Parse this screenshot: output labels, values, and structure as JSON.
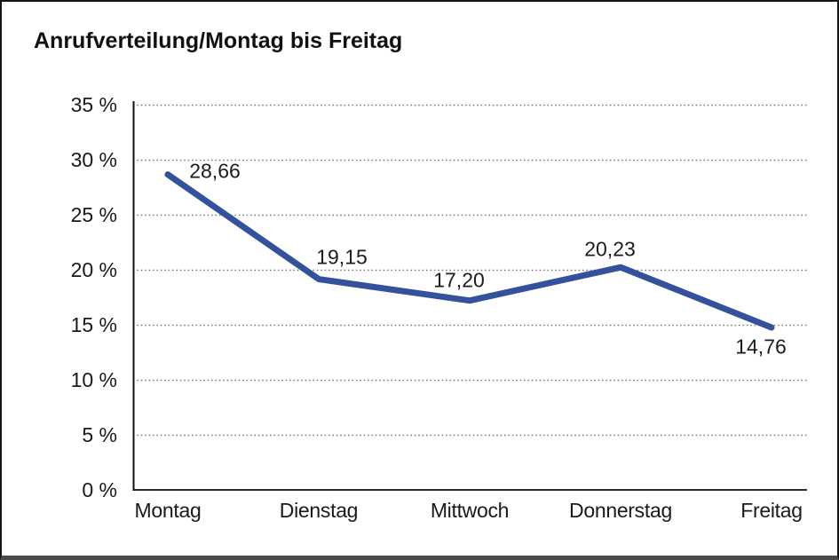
{
  "chart_data": {
    "type": "line",
    "title": "Anrufverteilung/Montag bis Freitag",
    "categories": [
      "Montag",
      "Dienstag",
      "Mittwoch",
      "Donnerstag",
      "Freitag"
    ],
    "series": [
      {
        "name": "Anrufverteilung",
        "values": [
          28.66,
          19.15,
          17.2,
          20.23,
          14.76
        ]
      }
    ],
    "value_labels": [
      "28,66",
      "19,15",
      "17,20",
      "20,23",
      "14,76"
    ],
    "y_tick_values": [
      0,
      5,
      10,
      15,
      20,
      25,
      30,
      35
    ],
    "y_tick_labels": [
      "0 %",
      "5 %",
      "10 %",
      "15 %",
      "20 %",
      "25 %",
      "30 %",
      "35 %"
    ],
    "ylim": [
      0,
      35
    ],
    "unit": "%",
    "legend": "none",
    "grid": "horizontal-dotted",
    "colors": {
      "line": "#34519C",
      "grid": "#7d7d7d",
      "axis": "#111111",
      "text": "#1a1a1a"
    }
  }
}
